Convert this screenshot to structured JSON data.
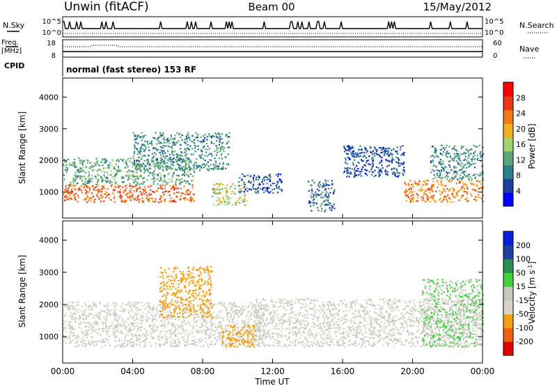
{
  "header": {
    "station": "Unwin (fitACF)",
    "beam": "Beam 00",
    "date": "15/May/2012"
  },
  "aux": {
    "nsky_label": "N.Sky",
    "nsearch_label": "N.Search",
    "freq_label_1": "Freq.",
    "freq_label_2": "[MHz]",
    "nave_label": "Nave",
    "cpid_label": "CPID",
    "cpid_text": "normal (fast stereo) 153 RF",
    "noise_ticks": [
      "10^5",
      "10^0"
    ],
    "freq_ticks": [
      "18",
      "8"
    ],
    "nave_ticks": [
      "60",
      "0"
    ]
  },
  "colors": {
    "power": [
      "#0000ff",
      "#1f3f9f",
      "#2e7d8a",
      "#5aa57a",
      "#a5d36b",
      "#f0b020",
      "#f07a1a",
      "#e83818",
      "#ff0000"
    ],
    "velocity": [
      "#e00000",
      "#f06010",
      "#f0a010",
      "#d9d5cb",
      "#c8c8c0",
      "#40d040",
      "#2a8f50",
      "#2040a0",
      "#0a20e0"
    ]
  },
  "chart_data": [
    {
      "type": "heatmap",
      "panel": "power",
      "ylabel": "Slant Range [km]",
      "xlabel": "",
      "colorbar_label": "Power [dB]",
      "colorbar_ticks": [
        "4",
        "8",
        "12",
        "16",
        "20",
        "24",
        "28"
      ],
      "y_ticks": [
        "1000",
        "2000",
        "3000",
        "4000"
      ],
      "ylim": [
        180,
        4600
      ],
      "xlim": [
        0,
        24
      ],
      "features": [
        {
          "t0": 0.0,
          "t1": 7.5,
          "r0": 700,
          "r1": 1250,
          "value": 26
        },
        {
          "t0": 0.0,
          "t1": 7.5,
          "r0": 1250,
          "r1": 2100,
          "value": 14
        },
        {
          "t0": 4.0,
          "t1": 9.5,
          "r0": 1700,
          "r1": 2900,
          "value": 12
        },
        {
          "t0": 8.5,
          "t1": 10.5,
          "r0": 600,
          "r1": 1300,
          "value": 18
        },
        {
          "t0": 10.0,
          "t1": 12.5,
          "r0": 1000,
          "r1": 1600,
          "value": 8
        },
        {
          "t0": 14.0,
          "t1": 15.5,
          "r0": 400,
          "r1": 1400,
          "value": 10
        },
        {
          "t0": 16.0,
          "t1": 19.5,
          "r0": 1500,
          "r1": 2500,
          "value": 8
        },
        {
          "t0": 19.5,
          "t1": 24.0,
          "r0": 700,
          "r1": 1400,
          "value": 24
        },
        {
          "t0": 21.0,
          "t1": 24.0,
          "r0": 1400,
          "r1": 2500,
          "value": 12
        }
      ]
    },
    {
      "type": "heatmap",
      "panel": "velocity",
      "ylabel": "Slant Range [km]",
      "xlabel": "Time UT",
      "colorbar_label": "Velocity [m s^-1]",
      "colorbar_ticks": [
        "-200",
        "-100",
        "-50",
        "-15",
        "15",
        "50",
        "100",
        "200"
      ],
      "x_ticks": [
        "00:00",
        "04:00",
        "08:00",
        "12:00",
        "16:00",
        "20:00",
        "00:00"
      ],
      "y_ticks": [
        "1000",
        "2000",
        "3000",
        "4000"
      ],
      "ylim": [
        180,
        4600
      ],
      "xlim": [
        0,
        24
      ],
      "features": [
        {
          "t0": 0.0,
          "t1": 11.5,
          "r0": 700,
          "r1": 2100,
          "value": 0
        },
        {
          "t0": 5.5,
          "t1": 8.5,
          "r0": 1600,
          "r1": 3200,
          "value": -50
        },
        {
          "t0": 9.0,
          "t1": 11.0,
          "r0": 700,
          "r1": 1400,
          "value": -50
        },
        {
          "t0": 11.0,
          "t1": 24.0,
          "r0": 700,
          "r1": 2200,
          "value": 0
        },
        {
          "t0": 20.5,
          "t1": 24.0,
          "r0": 700,
          "r1": 2800,
          "value": 15
        }
      ]
    }
  ]
}
